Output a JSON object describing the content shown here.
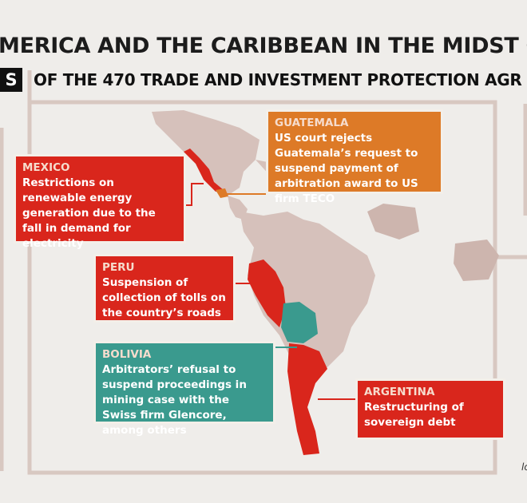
{
  "header": {
    "title": "MERICA AND THE CARIBBEAN IN THE MIDST OF T",
    "tag": "S",
    "subtitle": "OF THE 470 TRADE AND INVESTMENT PROTECTION AGR"
  },
  "callouts": [
    {
      "label": "GUATEMALA",
      "text": "US court rejects Guatemala’s request to suspend payment of arbitration award to US firm TECO"
    },
    {
      "label": "MEXICO",
      "text": "Restrictions on renewable energy generation due to the fall in demand for electricity"
    },
    {
      "label": "PERU",
      "text": "Suspension of collection of tolls on the country’s roads"
    },
    {
      "label": "BOLIVIA",
      "text": "Arbitrators’ refusal to suspend proceedings in mining case with the Swiss firm Glencore, among others"
    },
    {
      "label": "ARGENTINA",
      "text": "Restructuring of sovereign debt"
    }
  ],
  "footer": {
    "credit": "lo"
  }
}
